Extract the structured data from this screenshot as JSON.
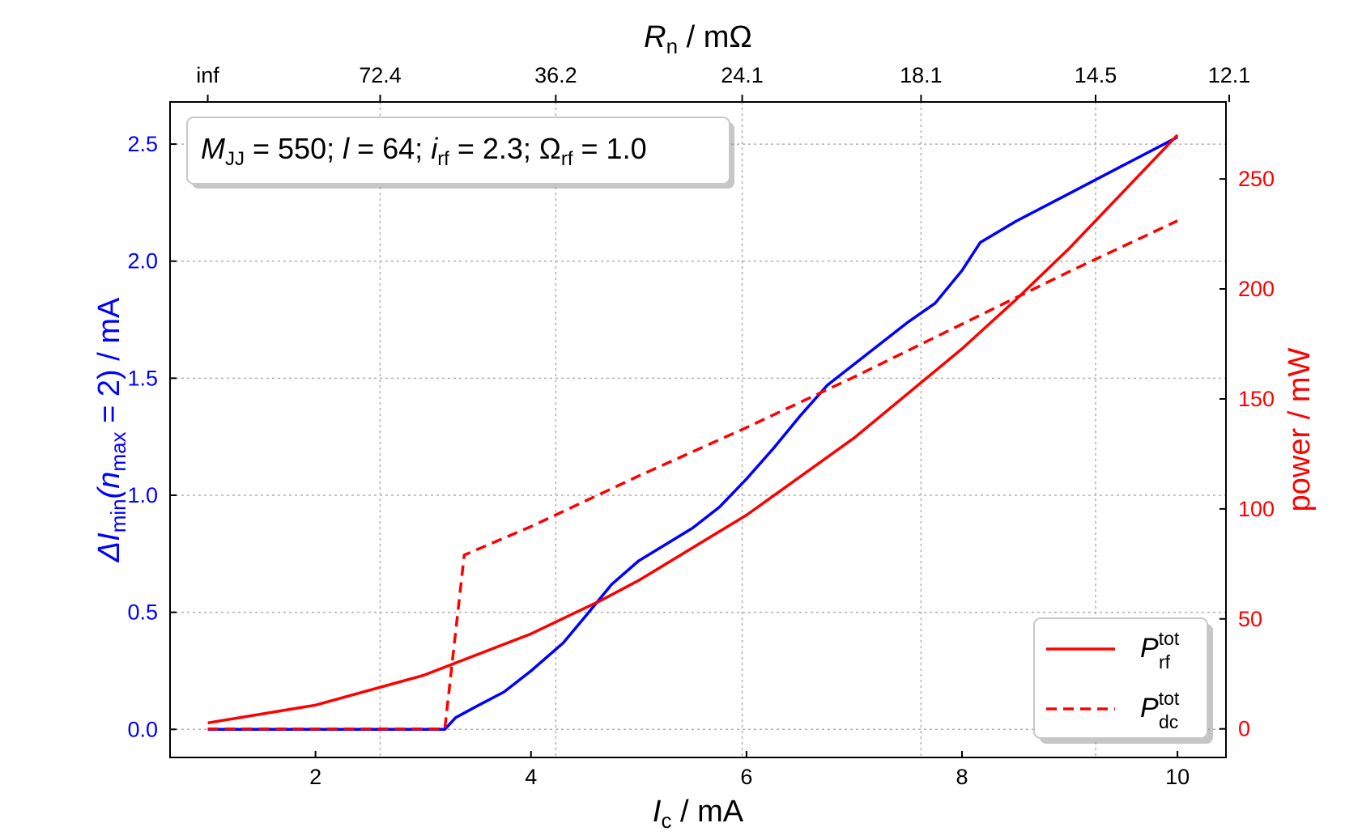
{
  "chart_data": {
    "type": "line",
    "annotation": {
      "M_sym": "M",
      "M_sub": "JJ",
      "M_val": " = 550; ",
      "l_sym": "l",
      "l_val": " = 64; ",
      "i_sym": "i",
      "i_sub": "rf",
      "i_val": " = 2.3; Ω",
      "O_sub": "rf",
      "O_val": " = 1.0"
    },
    "xaxis": {
      "label_main": "I",
      "label_sub": "c",
      "label_unit": " / mA",
      "range": [
        0.65,
        10.45
      ],
      "ticks": [
        2,
        4,
        6,
        8,
        10
      ],
      "tick_labels": [
        "2",
        "4",
        "6",
        "8",
        "10"
      ]
    },
    "top_axis": {
      "label_main": "R",
      "label_sub": "n",
      "label_unit": " / mΩ",
      "ticks": [
        1,
        2.6,
        4.23,
        5.96,
        7.62,
        9.24,
        10.48
      ],
      "tick_labels": [
        "inf",
        "72.4",
        "36.2",
        "24.1",
        "18.1",
        "14.5",
        "12.1"
      ]
    },
    "yaxis_left": {
      "label_parts": [
        "ΔI",
        "min",
        "(n",
        "max",
        " = 2) / mA"
      ],
      "range": [
        -0.12,
        2.68
      ],
      "ticks": [
        0.0,
        0.5,
        1.0,
        1.5,
        2.0,
        2.5
      ],
      "tick_labels": [
        "0.0",
        "0.5",
        "1.0",
        "1.5",
        "2.0",
        "2.5"
      ],
      "color": "#0000ff"
    },
    "yaxis_right": {
      "label": "power / mW",
      "range": [
        -13,
        285
      ],
      "ticks": [
        0,
        50,
        100,
        150,
        200,
        250
      ],
      "tick_labels": [
        "0",
        "50",
        "100",
        "150",
        "200",
        "250"
      ],
      "color": "#ff0000"
    },
    "grid": true,
    "legend_position": "lower-right",
    "series": [
      {
        "id": "delta_I",
        "axis": "left",
        "color": "#0000ff",
        "style": "solid",
        "x": [
          1.0,
          1.5,
          2.0,
          2.5,
          3.0,
          3.2,
          3.3,
          3.5,
          3.75,
          4.0,
          4.3,
          4.5,
          4.75,
          5.0,
          5.25,
          5.5,
          5.75,
          6.0,
          6.25,
          6.5,
          6.75,
          7.0,
          7.5,
          7.75,
          8.0,
          8.17,
          8.5,
          9.0,
          9.5,
          10.0
        ],
        "y": [
          0.0,
          0.0,
          0.0,
          0.0,
          0.0,
          0.0,
          0.05,
          0.1,
          0.16,
          0.25,
          0.37,
          0.48,
          0.62,
          0.72,
          0.79,
          0.86,
          0.95,
          1.07,
          1.2,
          1.34,
          1.47,
          1.56,
          1.74,
          1.82,
          1.96,
          2.08,
          2.17,
          2.29,
          2.41,
          2.53
        ]
      },
      {
        "id": "P_rf",
        "axis": "right",
        "color": "#ff0000",
        "style": "solid",
        "name_main": "P",
        "name_sup": "tot",
        "name_sub": "rf",
        "x": [
          1.0,
          2.0,
          3.0,
          4.0,
          4.65,
          5.0,
          6.0,
          7.0,
          8.0,
          8.5,
          9.0,
          10.0
        ],
        "y": [
          2.7,
          10.8,
          24.3,
          43.2,
          58.4,
          67.5,
          97.2,
          132.3,
          172.8,
          195.1,
          218.7,
          270.0
        ]
      },
      {
        "id": "P_dc",
        "axis": "right",
        "color": "#ff0000",
        "style": "dashed",
        "name_main": "P",
        "name_sup": "tot",
        "name_sub": "dc",
        "x": [
          1.0,
          3.2,
          3.38,
          4.0,
          5.0,
          6.0,
          7.0,
          8.0,
          9.0,
          10.0
        ],
        "y": [
          0.0,
          0.0,
          79.0,
          92.0,
          115.0,
          137.0,
          160.0,
          184.0,
          208.0,
          231.0
        ]
      }
    ]
  }
}
